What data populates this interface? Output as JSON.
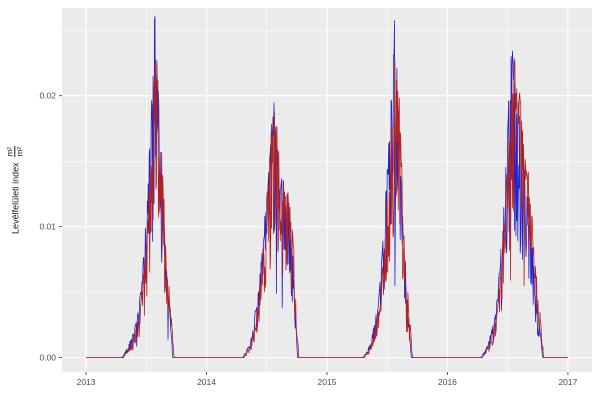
{
  "figure": {
    "background": "#FFFFFF",
    "panel_background": "#EBEBEB",
    "grid_color": "#FFFFFF",
    "tick_text_color": "#4D4D4D",
    "tick_mark_color": "#333333"
  },
  "chart_data": {
    "type": "line",
    "title": "",
    "xlabel": "",
    "ylabel_text": "Levélfelületi index",
    "ylabel_unit_numerator": "m²",
    "ylabel_unit_denominator": "m²",
    "legend": "none",
    "grid": true,
    "xlim": [
      2012.8,
      2017.2
    ],
    "ylim": [
      -0.0011,
      0.0267
    ],
    "x_ticks": [
      2013,
      2014,
      2015,
      2016,
      2017
    ],
    "x_tick_labels": [
      "2013",
      "2014",
      "2015",
      "2016",
      "2017"
    ],
    "x_minor_ticks": [
      2013.5,
      2014.5,
      2015.5,
      2016.5
    ],
    "y_ticks": [
      0,
      0.01,
      0.02
    ],
    "y_tick_labels": [
      "0.00",
      "0.01",
      "0.02"
    ],
    "y_minor_ticks": [
      0.005,
      0.015,
      0.025
    ],
    "sample_step": 0.004,
    "noise_up": 0.12,
    "noise_down": 0.5,
    "dip_prob": 0.07,
    "dip_factor": 0.45,
    "series": [
      {
        "name": "blue",
        "color": "#2222CC",
        "seed": 42,
        "points": [
          [
            2013.0,
            0
          ],
          [
            2013.3,
            0
          ],
          [
            2013.36,
            0.001
          ],
          [
            2013.42,
            0.0025
          ],
          [
            2013.46,
            0.005
          ],
          [
            2013.5,
            0.01
          ],
          [
            2013.54,
            0.017
          ],
          [
            2013.57,
            0.0235
          ],
          [
            2013.595,
            0.021
          ],
          [
            2013.62,
            0.015
          ],
          [
            2013.65,
            0.009
          ],
          [
            2013.68,
            0.005
          ],
          [
            2013.705,
            0.002
          ],
          [
            2013.72,
            0
          ],
          [
            2014.3,
            0
          ],
          [
            2014.36,
            0.001
          ],
          [
            2014.42,
            0.004
          ],
          [
            2014.47,
            0.008
          ],
          [
            2014.52,
            0.014
          ],
          [
            2014.56,
            0.0185
          ],
          [
            2014.6,
            0.013
          ],
          [
            2014.64,
            0.012
          ],
          [
            2014.68,
            0.011
          ],
          [
            2014.72,
            0.007
          ],
          [
            2014.755,
            0
          ],
          [
            2015.3,
            0
          ],
          [
            2015.36,
            0.001
          ],
          [
            2015.43,
            0.004
          ],
          [
            2015.48,
            0.01
          ],
          [
            2015.53,
            0.018
          ],
          [
            2015.56,
            0.0235
          ],
          [
            2015.59,
            0.019
          ],
          [
            2015.62,
            0.011
          ],
          [
            2015.65,
            0.006
          ],
          [
            2015.68,
            0.0025
          ],
          [
            2015.7,
            0
          ],
          [
            2016.28,
            0
          ],
          [
            2016.34,
            0.001
          ],
          [
            2016.4,
            0.003
          ],
          [
            2016.45,
            0.008
          ],
          [
            2016.5,
            0.016
          ],
          [
            2016.53,
            0.022
          ],
          [
            2016.57,
            0.018
          ],
          [
            2016.61,
            0.016
          ],
          [
            2016.65,
            0.013
          ],
          [
            2016.69,
            0.009
          ],
          [
            2016.73,
            0.005
          ],
          [
            2016.77,
            0.002
          ],
          [
            2016.79,
            0
          ],
          [
            2017.0,
            0
          ]
        ]
      },
      {
        "name": "red",
        "color": "#B22222",
        "seed": 1337,
        "points": [
          [
            2013.0,
            0
          ],
          [
            2013.31,
            0
          ],
          [
            2013.37,
            0.001
          ],
          [
            2013.43,
            0.0025
          ],
          [
            2013.47,
            0.005
          ],
          [
            2013.51,
            0.01
          ],
          [
            2013.55,
            0.016
          ],
          [
            2013.58,
            0.022
          ],
          [
            2013.605,
            0.02
          ],
          [
            2013.63,
            0.014
          ],
          [
            2013.66,
            0.009
          ],
          [
            2013.69,
            0.005
          ],
          [
            2013.715,
            0.002
          ],
          [
            2013.73,
            0
          ],
          [
            2014.31,
            0
          ],
          [
            2014.37,
            0.001
          ],
          [
            2014.43,
            0.004
          ],
          [
            2014.48,
            0.009
          ],
          [
            2014.53,
            0.015
          ],
          [
            2014.57,
            0.018
          ],
          [
            2014.61,
            0.013
          ],
          [
            2014.65,
            0.012
          ],
          [
            2014.69,
            0.011
          ],
          [
            2014.73,
            0.007
          ],
          [
            2014.765,
            0
          ],
          [
            2015.31,
            0
          ],
          [
            2015.37,
            0.001
          ],
          [
            2015.44,
            0.004
          ],
          [
            2015.49,
            0.01
          ],
          [
            2015.54,
            0.017
          ],
          [
            2015.57,
            0.022
          ],
          [
            2015.6,
            0.018
          ],
          [
            2015.63,
            0.011
          ],
          [
            2015.66,
            0.006
          ],
          [
            2015.69,
            0.0025
          ],
          [
            2015.71,
            0
          ],
          [
            2016.29,
            0
          ],
          [
            2016.35,
            0.001
          ],
          [
            2016.41,
            0.003
          ],
          [
            2016.46,
            0.008
          ],
          [
            2016.51,
            0.015
          ],
          [
            2016.55,
            0.021
          ],
          [
            2016.59,
            0.019
          ],
          [
            2016.63,
            0.016
          ],
          [
            2016.67,
            0.013
          ],
          [
            2016.71,
            0.009
          ],
          [
            2016.75,
            0.005
          ],
          [
            2016.78,
            0.002
          ],
          [
            2016.8,
            0
          ],
          [
            2017.0,
            0
          ]
        ]
      }
    ]
  }
}
